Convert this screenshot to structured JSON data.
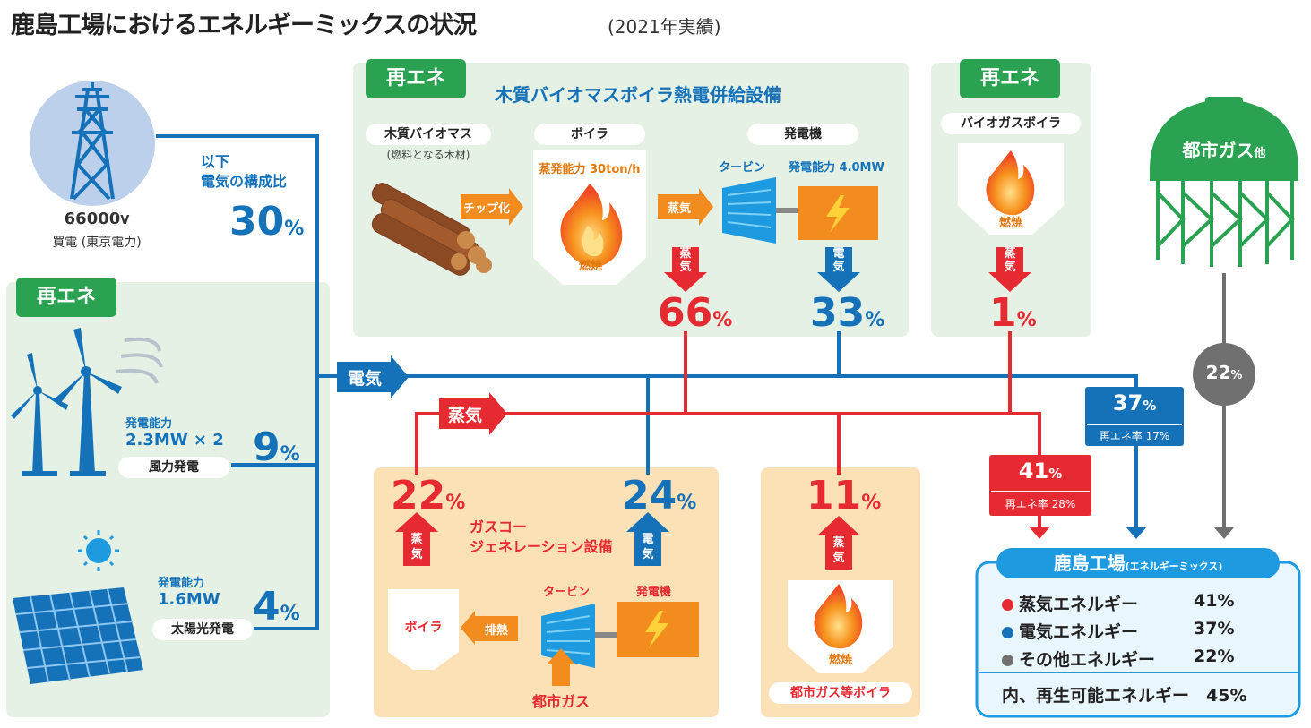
{
  "title": "鹿島工場におけるエネルギーミックスの状況",
  "subtitle": "(2021年実績)",
  "power_purchase": {
    "voltage": "66000",
    "unit": "V",
    "label": "買電 (東京電力)",
    "note_line1": "以下",
    "note_line2": "電気の構成比",
    "value": "30",
    "pct_sign": "%"
  },
  "renewable_tag": "再エネ",
  "wind": {
    "capacity_label": "発電能力",
    "capacity": "2.3MW × 2",
    "name": "風力発電",
    "value": "9",
    "pct_sign": "%"
  },
  "solar": {
    "capacity_label": "発電能力",
    "capacity": "1.6MW",
    "name": "太陽光発電",
    "value": "4",
    "pct_sign": "%"
  },
  "biomass": {
    "title": "木質バイオマスボイラ熱電併給設備",
    "fuel_label": "木質バイオマス",
    "fuel_note": "(燃料となる木材)",
    "chip_arrow": "チップ化",
    "boiler_label": "ボイラ",
    "boiler_capacity": "蒸発能力 30ton/h",
    "burn": "燃焼",
    "steam_arrow": "蒸気",
    "generator_label": "発電機",
    "turbine_label": "タービン",
    "gen_capacity": "発電能力 4.0MW",
    "steam_down_1": "蒸",
    "steam_down_2": "気",
    "steam_value": "66",
    "steam_pct": "%",
    "elec_down_1": "電",
    "elec_down_2": "気",
    "elec_value": "33",
    "elec_pct": "%"
  },
  "biogas": {
    "label": "バイオガスボイラ",
    "burn": "燃焼",
    "down_1": "蒸",
    "down_2": "気",
    "value": "1",
    "pct_sign": "%"
  },
  "city_gas": {
    "label": "都市ガス",
    "suffix": "他",
    "value": "22",
    "pct_sign": "%"
  },
  "electric_arrow": "電気",
  "steam_arrow": "蒸気",
  "cogeneration": {
    "title_1": "ガスコー",
    "title_2": "ジェネレーション設備",
    "steam_value": "22",
    "steam_pct": "%",
    "elec_value": "24",
    "elec_pct": "%",
    "up_steam_1": "蒸",
    "up_steam_2": "気",
    "up_elec_1": "電",
    "up_elec_2": "気",
    "boiler": "ボイラ",
    "exhaust": "排熱",
    "turbine": "タービン",
    "generator": "発電機",
    "fuel": "都市ガス"
  },
  "gas_boiler": {
    "value": "11",
    "pct_sign": "%",
    "up_1": "蒸",
    "up_2": "気",
    "burn": "燃焼",
    "name": "都市ガス等ボイラ"
  },
  "elec_total": {
    "value": "37",
    "pct_sign": "%",
    "renew": "再エネ率 17%"
  },
  "steam_total": {
    "value": "41",
    "pct_sign": "%",
    "renew": "再エネ率 28%"
  },
  "summary": {
    "title": "鹿島工場",
    "title_note": "(エネルギーミックス)",
    "rows": [
      {
        "label": "蒸気エネルギー",
        "value": "41%",
        "color": "#e62a32"
      },
      {
        "label": "電気エネルギー",
        "value": "37%",
        "color": "#1572b9"
      },
      {
        "label": "その他エネルギー",
        "value": "22%",
        "color": "#707070"
      }
    ],
    "footer": "内、再生可能エネルギー　45%"
  },
  "colors": {
    "blue": "#1572b9",
    "red": "#e62a32",
    "green": "#2ba252",
    "gray": "#707070",
    "orange": "#f28c1e"
  }
}
